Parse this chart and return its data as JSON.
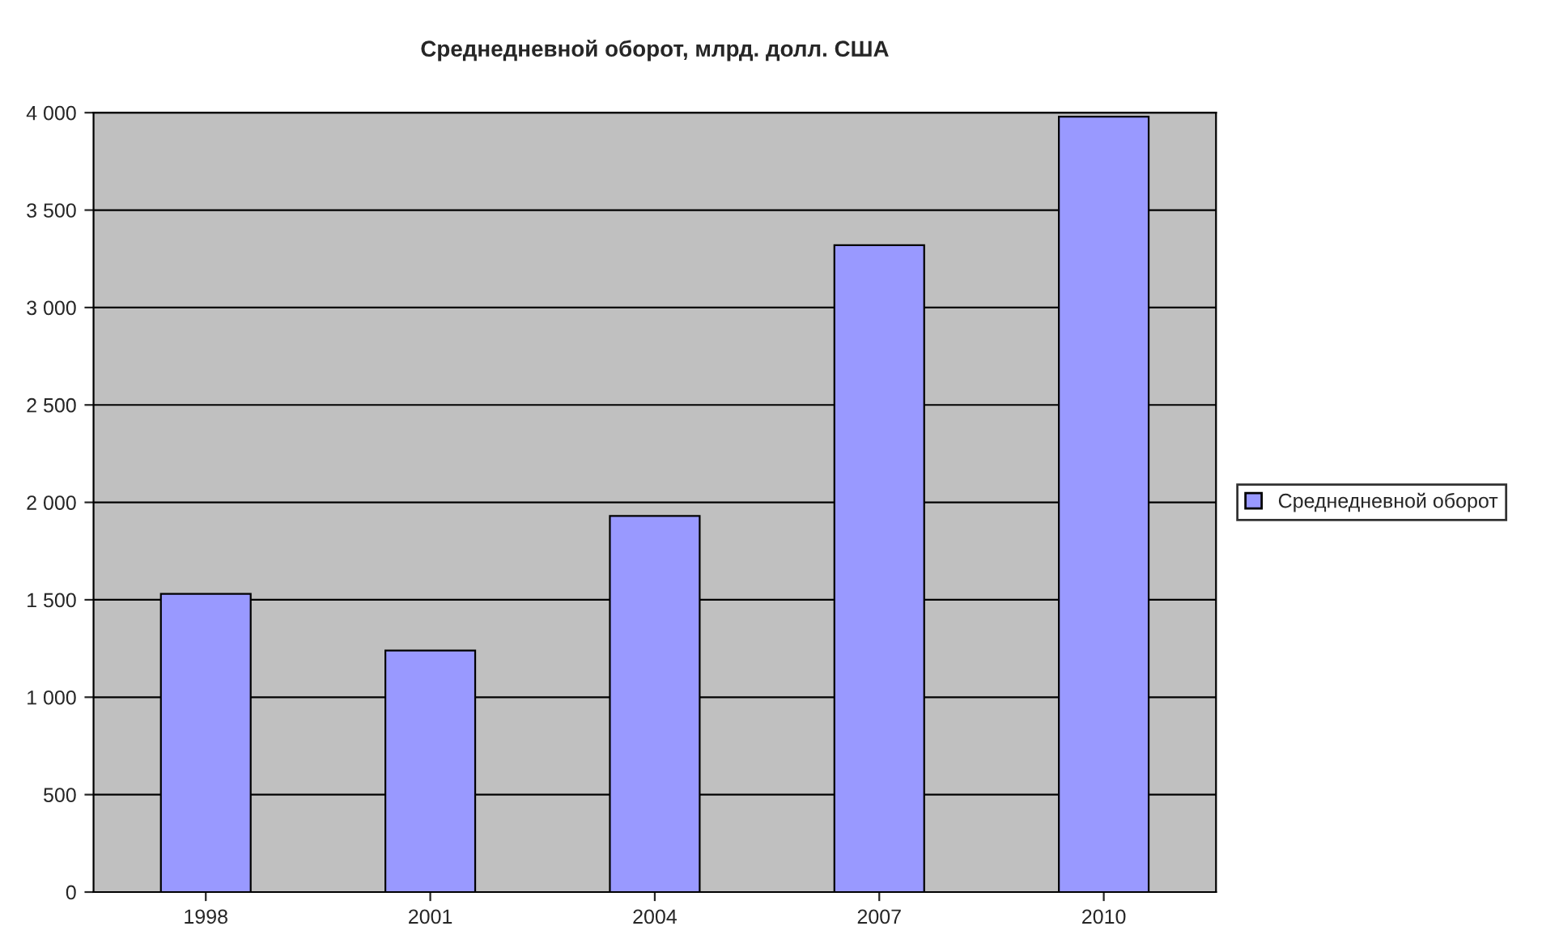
{
  "chart_data": {
    "type": "bar",
    "title": "Среднедневной оборот, млрд. долл. США",
    "categories": [
      "1998",
      "2001",
      "2004",
      "2007",
      "2010"
    ],
    "series": [
      {
        "name": "Среднедневной оборот",
        "color": "#9999ff",
        "values": [
          1530,
          1240,
          1930,
          3320,
          3980
        ]
      }
    ],
    "ylim": [
      0,
      4000
    ],
    "yticks": [
      0,
      500,
      {
        "value": 1000,
        "label": "1 000"
      },
      {
        "value": 1500,
        "label": "1 500"
      },
      {
        "value": 2000,
        "label": "2 000"
      },
      {
        "value": 2500,
        "label": "2 500"
      },
      {
        "value": 3000,
        "label": "3 000"
      },
      {
        "value": 3500,
        "label": "3 500"
      },
      {
        "value": 4000,
        "label": "4 000"
      }
    ],
    "grid": "y",
    "legend": "right"
  }
}
